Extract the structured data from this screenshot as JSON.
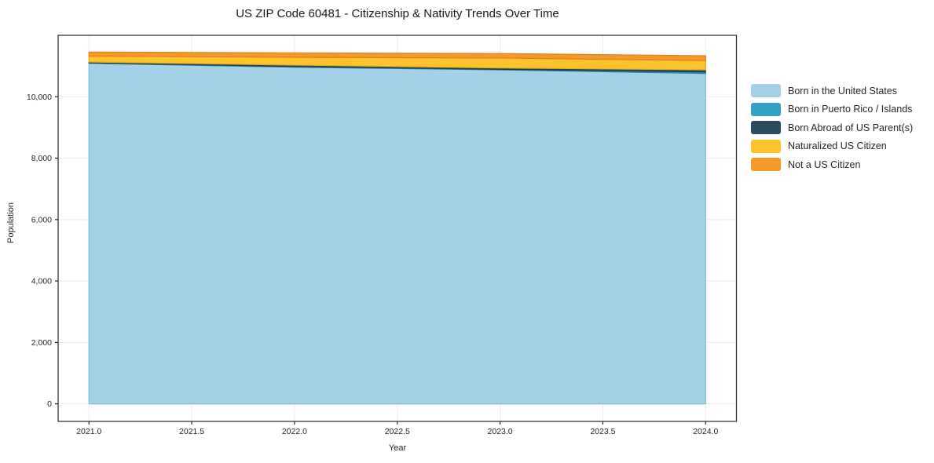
{
  "chart_data": {
    "type": "area",
    "stacked": true,
    "title": "US ZIP Code 60481 - Citizenship & Nativity Trends Over Time",
    "xlabel": "Year",
    "ylabel": "Population",
    "x": [
      2021,
      2022,
      2023,
      2024
    ],
    "series": [
      {
        "name": "Born in the United States",
        "color": "#a3d1e8",
        "edge_color": "#82bcda",
        "values": [
          11090,
          10960,
          10875,
          10755
        ]
      },
      {
        "name": "Born in Puerto Rico / Islands",
        "color": "#35a1c2",
        "edge_color": "#2b87a4",
        "values": [
          15,
          25,
          20,
          50
        ]
      },
      {
        "name": "Born Abroad of US Parent(s)",
        "color": "#2a4c5e",
        "edge_color": "#1f3a49",
        "values": [
          25,
          45,
          40,
          70
        ]
      },
      {
        "name": "Naturalized US Citizen",
        "color": "#fcc32f",
        "edge_color": "#e5a918",
        "values": [
          195,
          255,
          325,
          305
        ]
      },
      {
        "name": "Not a US Citizen",
        "color": "#f6992b",
        "edge_color": "#df821c",
        "values": [
          130,
          145,
          145,
          155
        ]
      }
    ],
    "xlim": [
      2020.85,
      2024.15
    ],
    "ylim": [
      -571,
      12000
    ],
    "xticks": {
      "values": [
        2021.0,
        2021.5,
        2022.0,
        2022.5,
        2023.0,
        2023.5,
        2024.0
      ],
      "labels": [
        "2021.0",
        "2021.5",
        "2022.0",
        "2022.5",
        "2023.0",
        "2023.5",
        "2024.0"
      ]
    },
    "yticks": {
      "values": [
        0,
        2000,
        4000,
        6000,
        8000,
        10000
      ],
      "labels": [
        "0",
        "2,000",
        "4,000",
        "6,000",
        "8,000",
        "10,000"
      ]
    },
    "grid": true,
    "legend_position": "right",
    "axis_color": "#262626",
    "grid_color": "rgba(0,0,0,0.08)",
    "background_color": "#ffffff"
  }
}
